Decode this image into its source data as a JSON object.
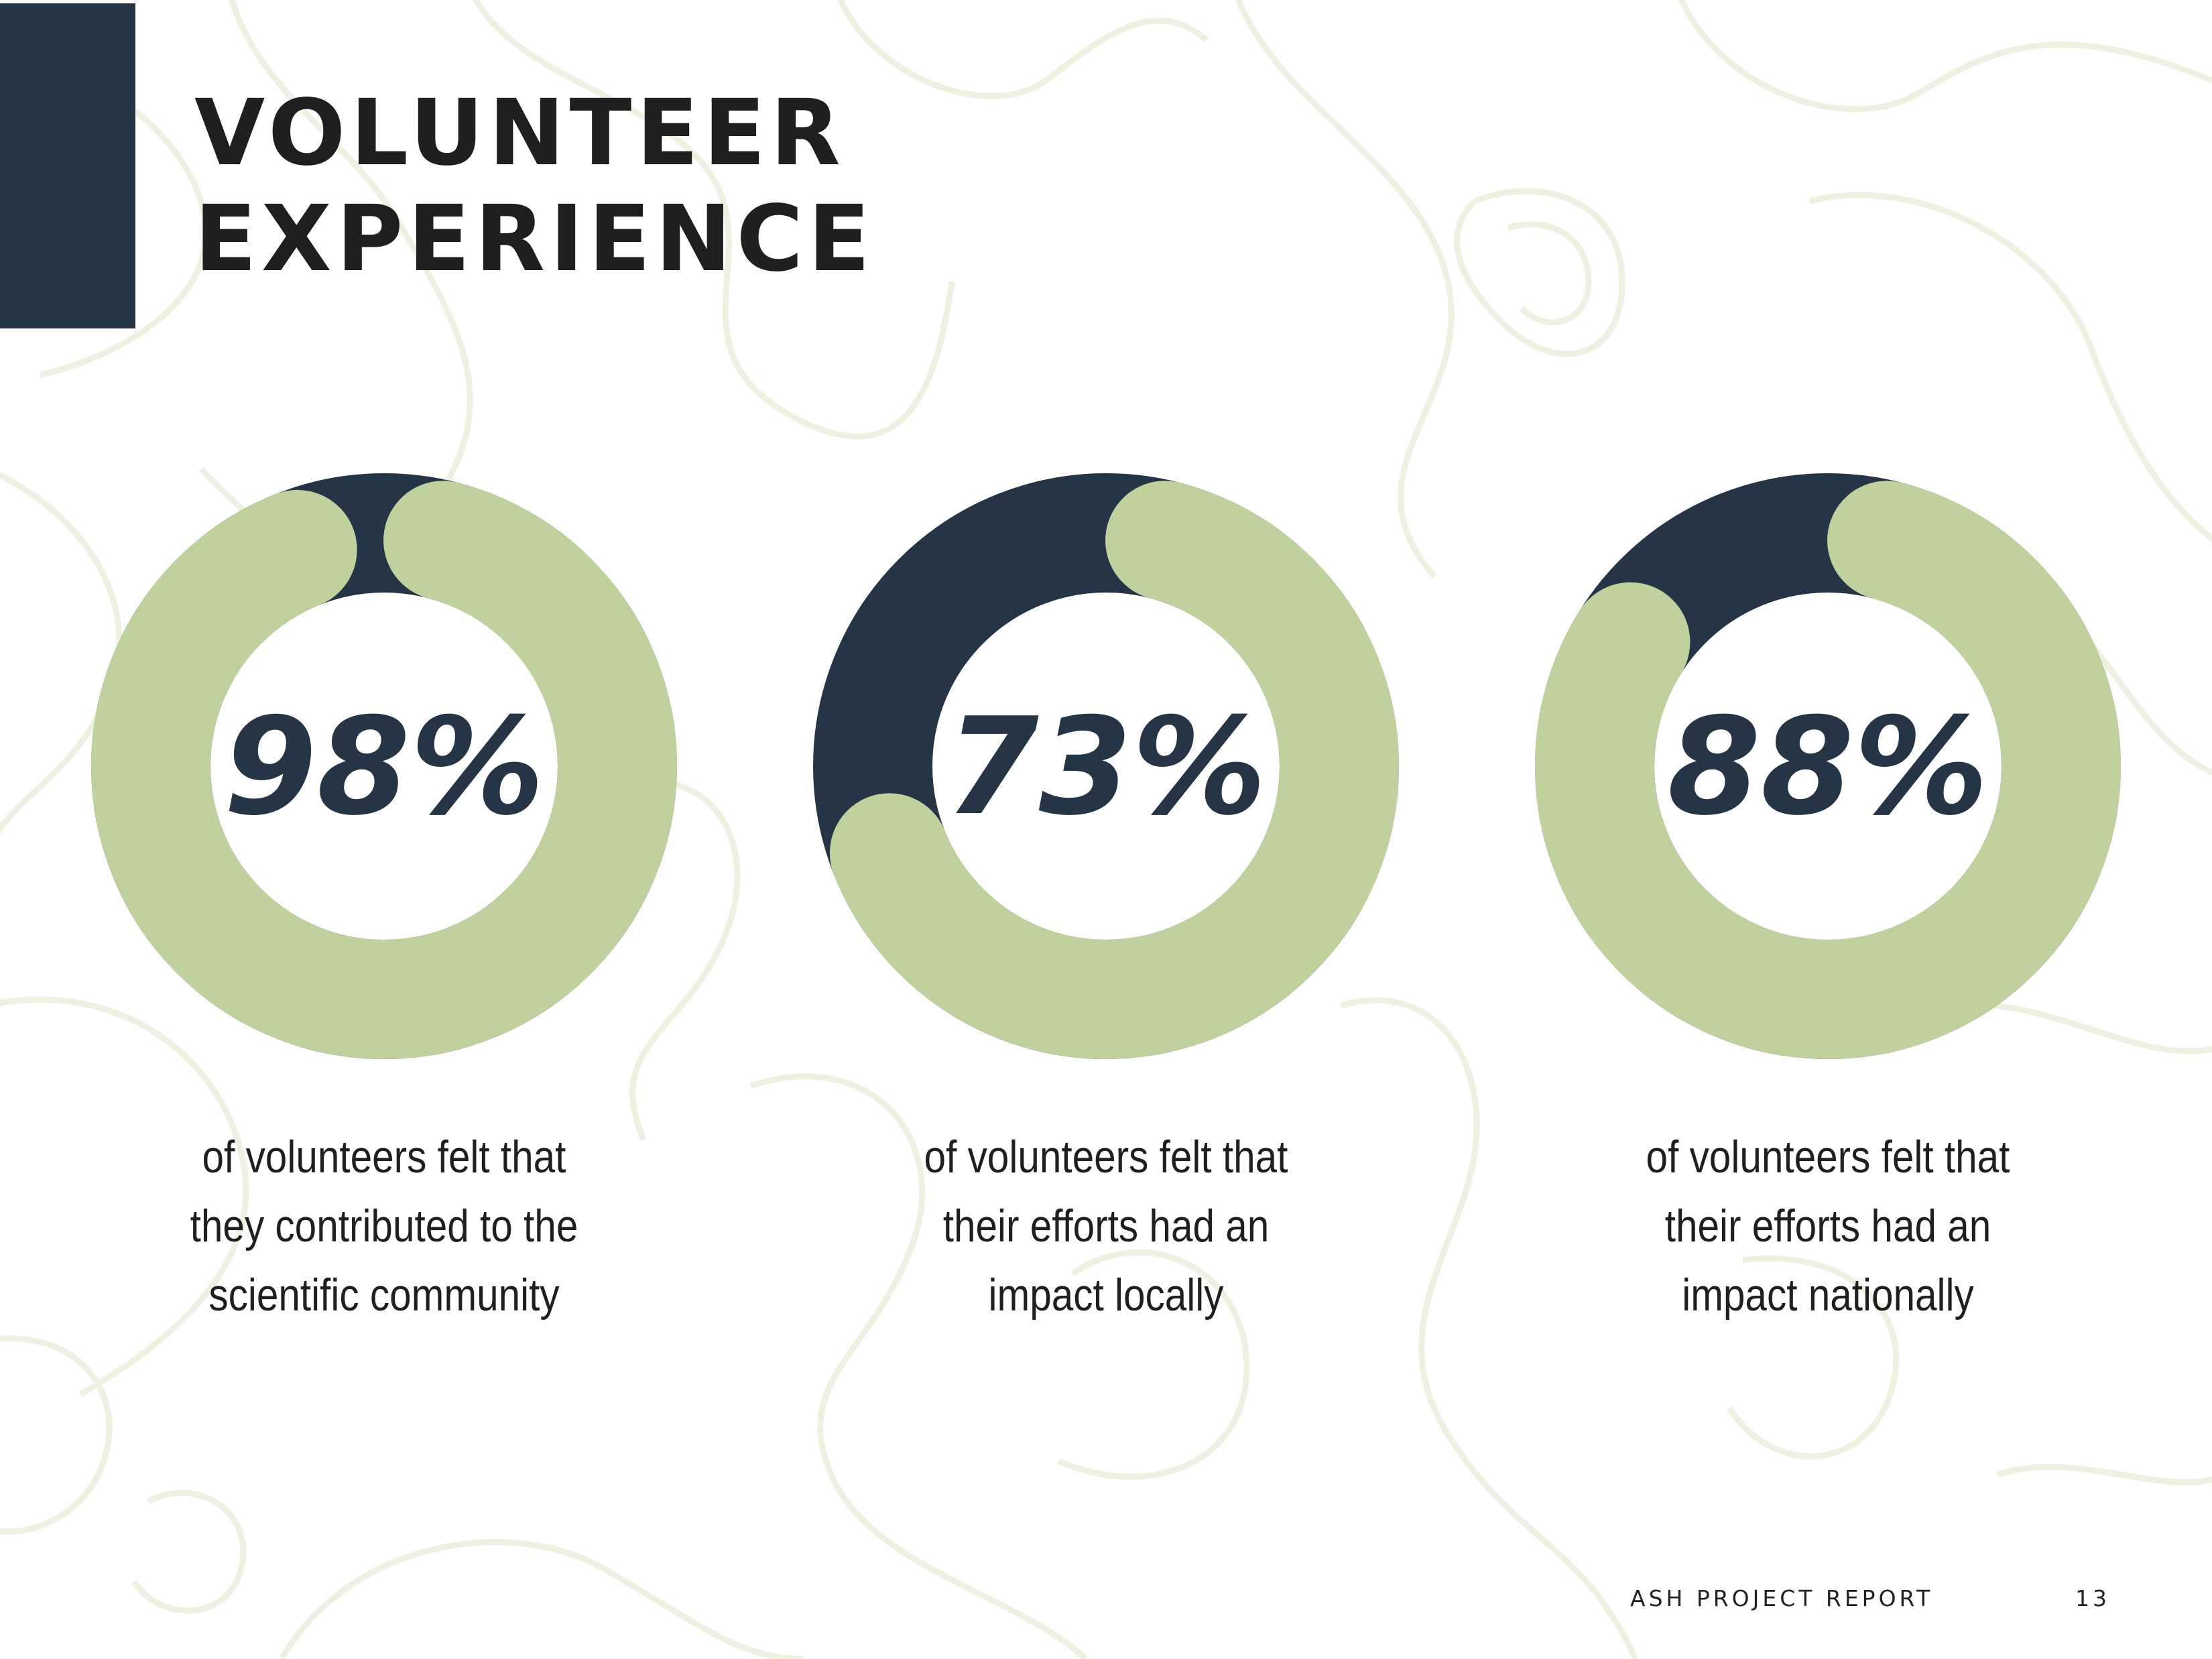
{
  "page": {
    "title_line1": "VOLUNTEER",
    "title_line2": "EXPERIENCE",
    "footer_left": "ASH PROJECT REPORT",
    "page_number": "13"
  },
  "colors": {
    "dark": "#253545",
    "green": "#bfd19c",
    "contour": "#eef0e0"
  },
  "chart_data": [
    {
      "type": "pie",
      "values": [
        98,
        2
      ],
      "label": "98%",
      "caption": [
        "of volunteers felt that",
        "they contributed to the",
        "scientific community"
      ]
    },
    {
      "type": "pie",
      "values": [
        73,
        27
      ],
      "label": "73%",
      "caption": [
        "of volunteers felt that",
        "their efforts had an",
        "impact locally"
      ]
    },
    {
      "type": "pie",
      "values": [
        88,
        12
      ],
      "label": "88%",
      "caption": [
        "of volunteers felt that",
        "their efforts had an",
        "impact nationally"
      ]
    }
  ]
}
